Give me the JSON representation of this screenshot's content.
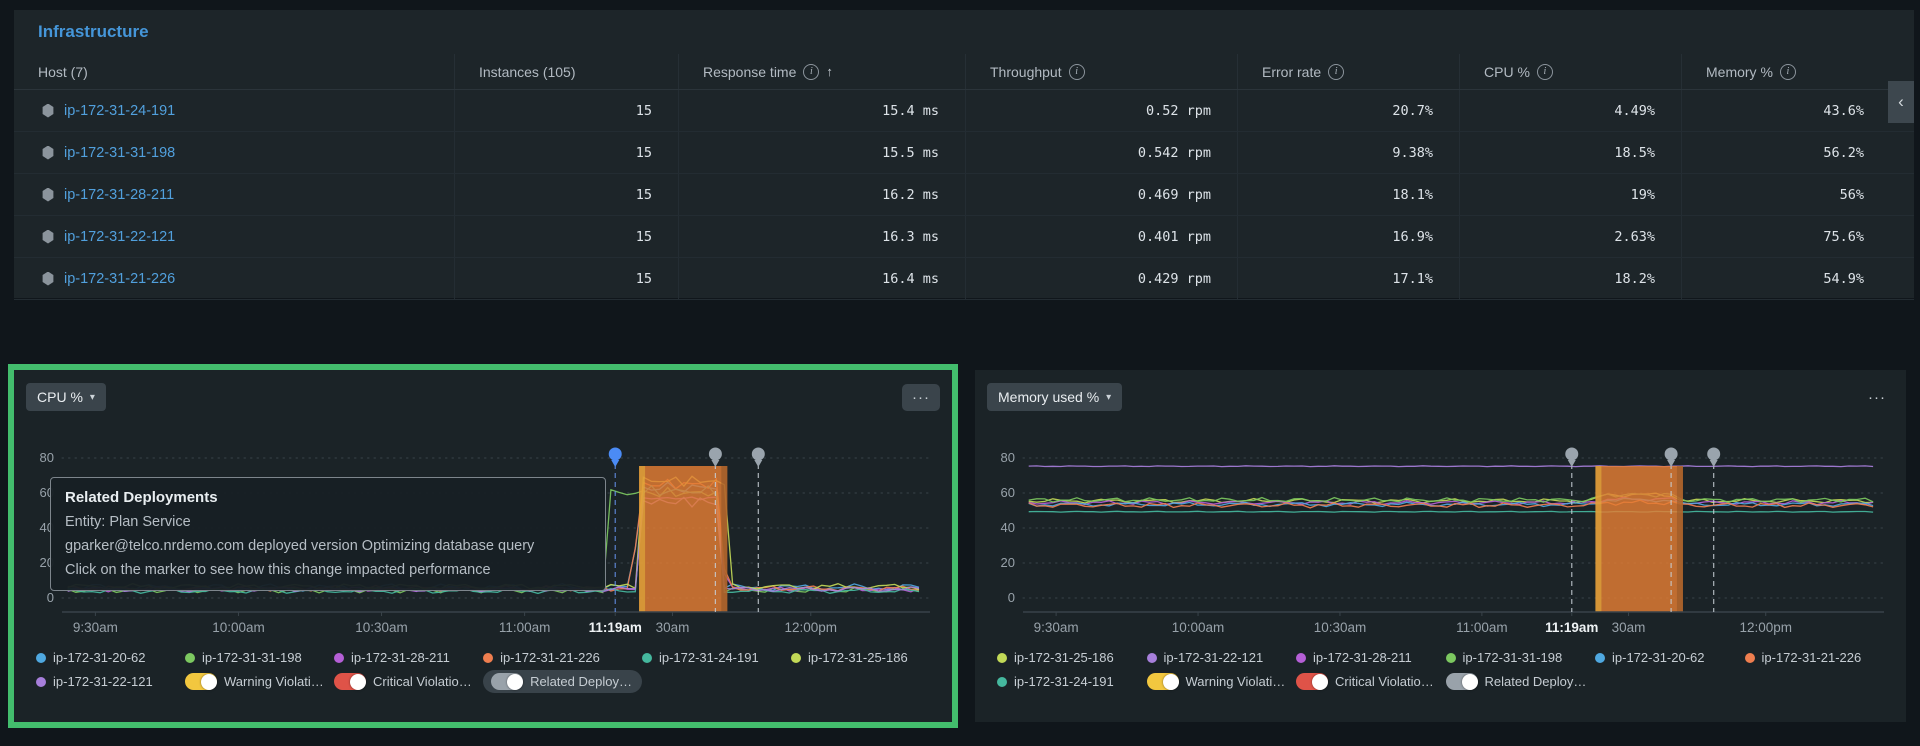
{
  "icons": {
    "info": "i",
    "sort_up": "↑",
    "chevron_down": "▾",
    "chevron_left": "‹",
    "ellipsis": "···"
  },
  "table": {
    "title": "Infrastructure",
    "columns": [
      {
        "label": "Host (7)",
        "info": false,
        "sort": false
      },
      {
        "label": "Instances (105)",
        "info": false,
        "sort": false
      },
      {
        "label": "Response time",
        "info": true,
        "sort": true
      },
      {
        "label": "Throughput",
        "info": true,
        "sort": false
      },
      {
        "label": "Error rate",
        "info": true,
        "sort": false
      },
      {
        "label": "CPU %",
        "info": true,
        "sort": false
      },
      {
        "label": "Memory %",
        "info": true,
        "sort": false
      }
    ],
    "rows": [
      {
        "host": "ip-172-31-24-191",
        "instances": "15",
        "response_time": "15.4 ms",
        "throughput": "0.52 rpm",
        "error_rate": "20.7%",
        "cpu": "4.49%",
        "memory": "43.6%"
      },
      {
        "host": "ip-172-31-31-198",
        "instances": "15",
        "response_time": "15.5 ms",
        "throughput": "0.542 rpm",
        "error_rate": "9.38%",
        "cpu": "18.5%",
        "memory": "56.2%"
      },
      {
        "host": "ip-172-31-28-211",
        "instances": "15",
        "response_time": "16.2 ms",
        "throughput": "0.469 rpm",
        "error_rate": "18.1%",
        "cpu": "19%",
        "memory": "56%"
      },
      {
        "host": "ip-172-31-22-121",
        "instances": "15",
        "response_time": "16.3 ms",
        "throughput": "0.401 rpm",
        "error_rate": "16.9%",
        "cpu": "2.63%",
        "memory": "75.6%"
      },
      {
        "host": "ip-172-31-21-226",
        "instances": "15",
        "response_time": "16.4 ms",
        "throughput": "0.429 rpm",
        "error_rate": "17.1%",
        "cpu": "18.2%",
        "memory": "54.9%"
      }
    ]
  },
  "chart_data": [
    {
      "type": "line",
      "title": "CPU %",
      "selector_label": "CPU %",
      "menu_boxed": true,
      "ylim": [
        0,
        85
      ],
      "yticks": [
        0,
        20,
        40,
        60,
        80
      ],
      "xlim": [
        563,
        745
      ],
      "xticks": [
        {
          "t": 570,
          "label": "9:30am"
        },
        {
          "t": 600,
          "label": "10:00am"
        },
        {
          "t": 630,
          "label": "10:30am"
        },
        {
          "t": 660,
          "label": "11:00am"
        },
        {
          "t": 679,
          "label": "11:19am",
          "em": true
        },
        {
          "t": 691,
          "label": "30am"
        },
        {
          "t": 720,
          "label": "12:00pm"
        }
      ],
      "highlight_region": {
        "from": 684,
        "to": 702.5,
        "color": "#e57e33"
      },
      "deployment_markers": [
        {
          "t": 679,
          "color": "#4b8bf5",
          "line": "#6592ec",
          "state": "hovered"
        },
        {
          "t": 700,
          "color": "#9aa4ad",
          "line": "#c7cfd5",
          "state": "default"
        },
        {
          "t": 709,
          "color": "#9aa4ad",
          "line": "#c7cfd5",
          "state": "default"
        }
      ],
      "series": [
        {
          "name": "ip-172-31-20-62",
          "color": "#4fa8e0",
          "baseline": 6.0,
          "amp": 2.2,
          "spike": {
            "from": 683.0,
            "to": 701.5,
            "value": 63
          }
        },
        {
          "name": "ip-172-31-31-198",
          "color": "#7cc860",
          "baseline": 4.5,
          "amp": 1.6,
          "spike": {
            "from": 677.5,
            "to": 701.0,
            "value": 60
          }
        },
        {
          "name": "ip-172-31-28-211",
          "color": "#b55fd6",
          "baseline": 5.0,
          "amp": 1.5,
          "spike": {
            "from": 683.5,
            "to": 702.0,
            "value": 57
          }
        },
        {
          "name": "ip-172-31-21-226",
          "color": "#ef7e4f",
          "baseline": 5.5,
          "amp": 1.7,
          "spike": {
            "from": 683.0,
            "to": 702.0,
            "value": 65
          }
        },
        {
          "name": "ip-172-31-24-191",
          "color": "#45b89e",
          "baseline": 4.0,
          "amp": 1.4,
          "spike": {
            "from": 684.0,
            "to": 701.5,
            "value": 61
          }
        },
        {
          "name": "ip-172-31-25-186",
          "color": "#c2d957",
          "baseline": 6.5,
          "amp": 1.8,
          "spike": {
            "from": 683.2,
            "to": 702.4,
            "value": 67
          }
        },
        {
          "name": "ip-172-31-22-121",
          "color": "#a77fdb",
          "baseline": 5.0,
          "amp": 1.5,
          "spike": {
            "from": 684.0,
            "to": 701.0,
            "value": 55
          }
        }
      ],
      "legend": [
        [
          {
            "type": "series",
            "label": "ip-172-31-20-62",
            "color": "#4fa8e0"
          },
          {
            "type": "series",
            "label": "ip-172-31-31-198",
            "color": "#7cc860"
          },
          {
            "type": "series",
            "label": "ip-172-31-28-211",
            "color": "#b55fd6"
          },
          {
            "type": "series",
            "label": "ip-172-31-21-226",
            "color": "#ef7e4f"
          },
          {
            "type": "series",
            "label": "ip-172-31-24-191",
            "color": "#45b89e"
          },
          {
            "type": "series",
            "label": "ip-172-31-25-186",
            "color": "#c2d957"
          }
        ],
        [
          {
            "type": "series",
            "label": "ip-172-31-22-121",
            "color": "#a77fdb"
          },
          {
            "type": "toggle",
            "label": "Warning Violati…",
            "color": "#f2c73f"
          },
          {
            "type": "toggle",
            "label": "Critical Violatio…",
            "color": "#df5348"
          },
          {
            "type": "toggle",
            "label": "Related Deploy…",
            "color": "#99a2aa",
            "hovered": true
          }
        ]
      ],
      "tooltip": {
        "title": "Related Deployments",
        "lines": [
          "Entity: Plan Service",
          "gparker@telco.nrdemo.com deployed version Optimizing database query",
          "Click on the marker to see how this change impacted performance"
        ]
      }
    },
    {
      "type": "line",
      "title": "Memory used %",
      "selector_label": "Memory used %",
      "menu_boxed": false,
      "ylim": [
        0,
        85
      ],
      "yticks": [
        0,
        20,
        40,
        60,
        80
      ],
      "xlim": [
        563,
        745
      ],
      "xticks": [
        {
          "t": 570,
          "label": "9:30am"
        },
        {
          "t": 600,
          "label": "10:00am"
        },
        {
          "t": 630,
          "label": "10:30am"
        },
        {
          "t": 660,
          "label": "11:00am"
        },
        {
          "t": 679,
          "label": "11:19am",
          "em": true
        },
        {
          "t": 691,
          "label": "30am"
        },
        {
          "t": 720,
          "label": "12:00pm"
        }
      ],
      "highlight_region": {
        "from": 684,
        "to": 702.5,
        "color": "#e57e33"
      },
      "deployment_markers": [
        {
          "t": 679,
          "color": "#9aa4ad",
          "line": "#c7cfd5",
          "state": "default"
        },
        {
          "t": 700,
          "color": "#9aa4ad",
          "line": "#c7cfd5",
          "state": "default"
        },
        {
          "t": 709,
          "color": "#9aa4ad",
          "line": "#c7cfd5",
          "state": "default"
        }
      ],
      "series": [
        {
          "name": "ip-172-31-25-186",
          "color": "#c2d957",
          "baseline": 55.5,
          "amp": 1.3,
          "bump": {
            "from": 684,
            "to": 702,
            "delta": 3.5
          }
        },
        {
          "name": "ip-172-31-22-121",
          "color": "#a77fdb",
          "baseline": 75.3,
          "amp": 0.25
        },
        {
          "name": "ip-172-31-28-211",
          "color": "#b55fd6",
          "baseline": 54.5,
          "amp": 1.2,
          "bump": {
            "from": 684,
            "to": 702,
            "delta": 2
          }
        },
        {
          "name": "ip-172-31-31-198",
          "color": "#7cc860",
          "baseline": 56.0,
          "amp": 1.4,
          "bump": {
            "from": 684,
            "to": 702,
            "delta": 3
          }
        },
        {
          "name": "ip-172-31-20-62",
          "color": "#4fa8e0",
          "baseline": 53.5,
          "amp": 1.3,
          "bump": {
            "from": 684,
            "to": 702,
            "delta": 2.5
          }
        },
        {
          "name": "ip-172-31-21-226",
          "color": "#ef7e4f",
          "baseline": 53.0,
          "amp": 1.5,
          "bump": {
            "from": 684,
            "to": 702,
            "delta": 1.5
          }
        },
        {
          "name": "ip-172-31-24-191",
          "color": "#45b89e",
          "baseline": 49.3,
          "amp": 0.25
        }
      ],
      "legend": [
        [
          {
            "type": "series",
            "label": "ip-172-31-25-186",
            "color": "#c2d957"
          },
          {
            "type": "series",
            "label": "ip-172-31-22-121",
            "color": "#a77fdb"
          },
          {
            "type": "series",
            "label": "ip-172-31-28-211",
            "color": "#b55fd6"
          },
          {
            "type": "series",
            "label": "ip-172-31-31-198",
            "color": "#7cc860"
          },
          {
            "type": "series",
            "label": "ip-172-31-20-62",
            "color": "#4fa8e0"
          },
          {
            "type": "series",
            "label": "ip-172-31-21-226",
            "color": "#ef7e4f"
          }
        ],
        [
          {
            "type": "series",
            "label": "ip-172-31-24-191",
            "color": "#45b89e"
          },
          {
            "type": "toggle",
            "label": "Warning Violati…",
            "color": "#f2c73f"
          },
          {
            "type": "toggle",
            "label": "Critical Violatio…",
            "color": "#df5348"
          },
          {
            "type": "toggle",
            "label": "Related Deploy…",
            "color": "#99a2aa"
          }
        ]
      ]
    }
  ]
}
